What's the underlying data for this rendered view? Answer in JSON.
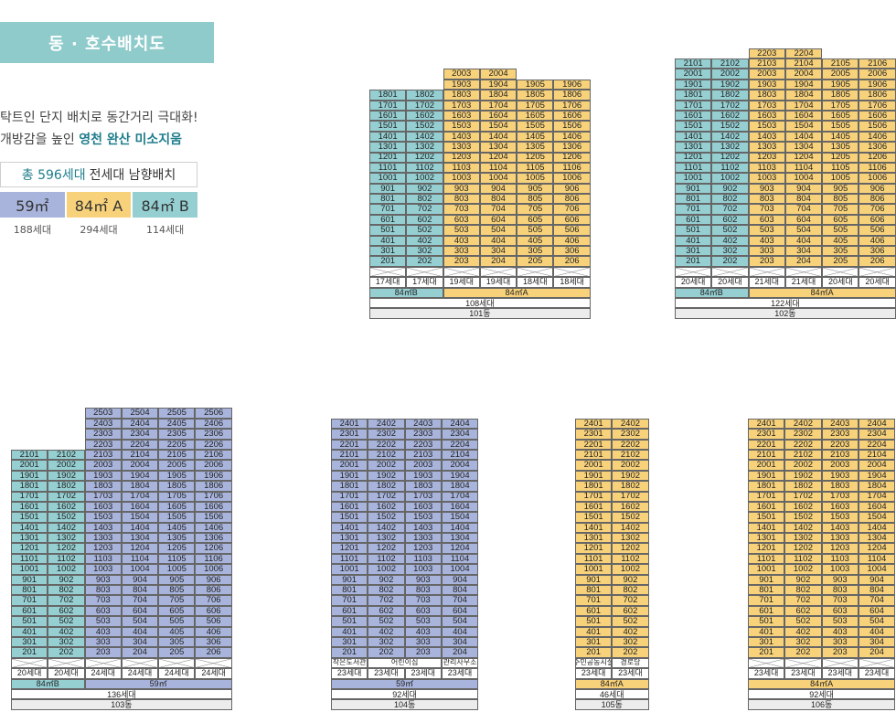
{
  "panel": {
    "title": "동 · 호수배치도",
    "desc1": "탁트인 단지 배치로 동간거리 극대화!",
    "desc2_prefix": "개방감을 높인 ",
    "desc2_bold": "영천 완산 미소지움",
    "total_highlight": "총 596세대",
    "total_rest": "전세대 남향배치",
    "types": [
      {
        "label": "59㎡",
        "count": "188세대",
        "color": "#a8b4dc"
      },
      {
        "label": "84㎡ A",
        "count": "294세대",
        "color": "#f8d27a"
      },
      {
        "label": "84㎡ B",
        "count": "114세대",
        "color": "#95cfd2"
      }
    ]
  },
  "colors": {
    "59": "#a8b4dc",
    "84A": "#f8d27a",
    "84B": "#95cfd2",
    "blank": "#ffffff",
    "foot": "#ececec"
  },
  "buildings": [
    {
      "name": "101동",
      "total": "108세대",
      "cols": [
        {
          "top": 18,
          "type": "84B",
          "units": "17세대"
        },
        {
          "top": 18,
          "type": "84B",
          "units": "17세대"
        },
        {
          "top": 20,
          "type": "84A",
          "units": "19세대"
        },
        {
          "top": 20,
          "type": "84A",
          "units": "19세대"
        },
        {
          "top": 19,
          "type": "84A",
          "units": "18세대"
        },
        {
          "top": 19,
          "type": "84A",
          "units": "18세대"
        }
      ],
      "ground": [],
      "typebar": [
        {
          "label": "84㎡B",
          "span": 2,
          "type": "84B"
        },
        {
          "label": "84㎡A",
          "span": 4,
          "type": "84A"
        }
      ]
    },
    {
      "name": "102동",
      "total": "122세대",
      "cols": [
        {
          "top": 21,
          "type": "84B",
          "units": "20세대"
        },
        {
          "top": 21,
          "type": "84B",
          "units": "20세대"
        },
        {
          "top": 22,
          "type": "84A",
          "units": "21세대"
        },
        {
          "top": 22,
          "type": "84A",
          "units": "21세대"
        },
        {
          "top": 21,
          "type": "84A",
          "units": "20세대"
        },
        {
          "top": 21,
          "type": "84A",
          "units": "20세대"
        }
      ],
      "ground": [],
      "typebar": [
        {
          "label": "84㎡B",
          "span": 2,
          "type": "84B"
        },
        {
          "label": "84㎡A",
          "span": 4,
          "type": "84A"
        }
      ]
    },
    {
      "name": "103동",
      "total": "136세대",
      "cols": [
        {
          "top": 21,
          "type": "84B",
          "units": "20세대"
        },
        {
          "top": 21,
          "type": "84B",
          "units": "20세대"
        },
        {
          "top": 25,
          "type": "59",
          "units": "24세대"
        },
        {
          "top": 25,
          "type": "59",
          "units": "24세대"
        },
        {
          "top": 25,
          "type": "59",
          "units": "24세대"
        },
        {
          "top": 25,
          "type": "59",
          "units": "24세대"
        }
      ],
      "ground": [],
      "typebar": [
        {
          "label": "84㎡B",
          "span": 2,
          "type": "84B"
        },
        {
          "label": "59㎡",
          "span": 4,
          "type": "59"
        }
      ]
    },
    {
      "name": "104동",
      "total": "92세대",
      "cols": [
        {
          "top": 24,
          "type": "59",
          "units": "23세대"
        },
        {
          "top": 24,
          "type": "59",
          "units": "23세대"
        },
        {
          "top": 24,
          "type": "59",
          "units": "23세대"
        },
        {
          "top": 24,
          "type": "59",
          "units": "23세대"
        }
      ],
      "ground": [
        "작은도서관",
        "어린이집",
        "관리사무소"
      ],
      "ground_spans": [
        1,
        2,
        1
      ],
      "typebar": [
        {
          "label": "59㎡",
          "span": 4,
          "type": "59"
        }
      ]
    },
    {
      "name": "105동",
      "total": "46세대",
      "cols": [
        {
          "top": 24,
          "type": "84A",
          "units": "23세대"
        },
        {
          "top": 24,
          "type": "84A",
          "units": "23세대"
        }
      ],
      "ground": [
        "주민공동시설",
        "경로당"
      ],
      "ground_spans": [
        1,
        1
      ],
      "typebar": [
        {
          "label": "84㎡A",
          "span": 2,
          "type": "84A"
        }
      ]
    },
    {
      "name": "106동",
      "total": "92세대",
      "cols": [
        {
          "top": 24,
          "type": "84A",
          "units": "23세대"
        },
        {
          "top": 24,
          "type": "84A",
          "units": "23세대"
        },
        {
          "top": 24,
          "type": "84A",
          "units": "23세대"
        },
        {
          "top": 24,
          "type": "84A",
          "units": "23세대"
        }
      ],
      "ground": [],
      "typebar": [
        {
          "label": "84㎡A",
          "span": 4,
          "type": "84A"
        }
      ]
    }
  ]
}
